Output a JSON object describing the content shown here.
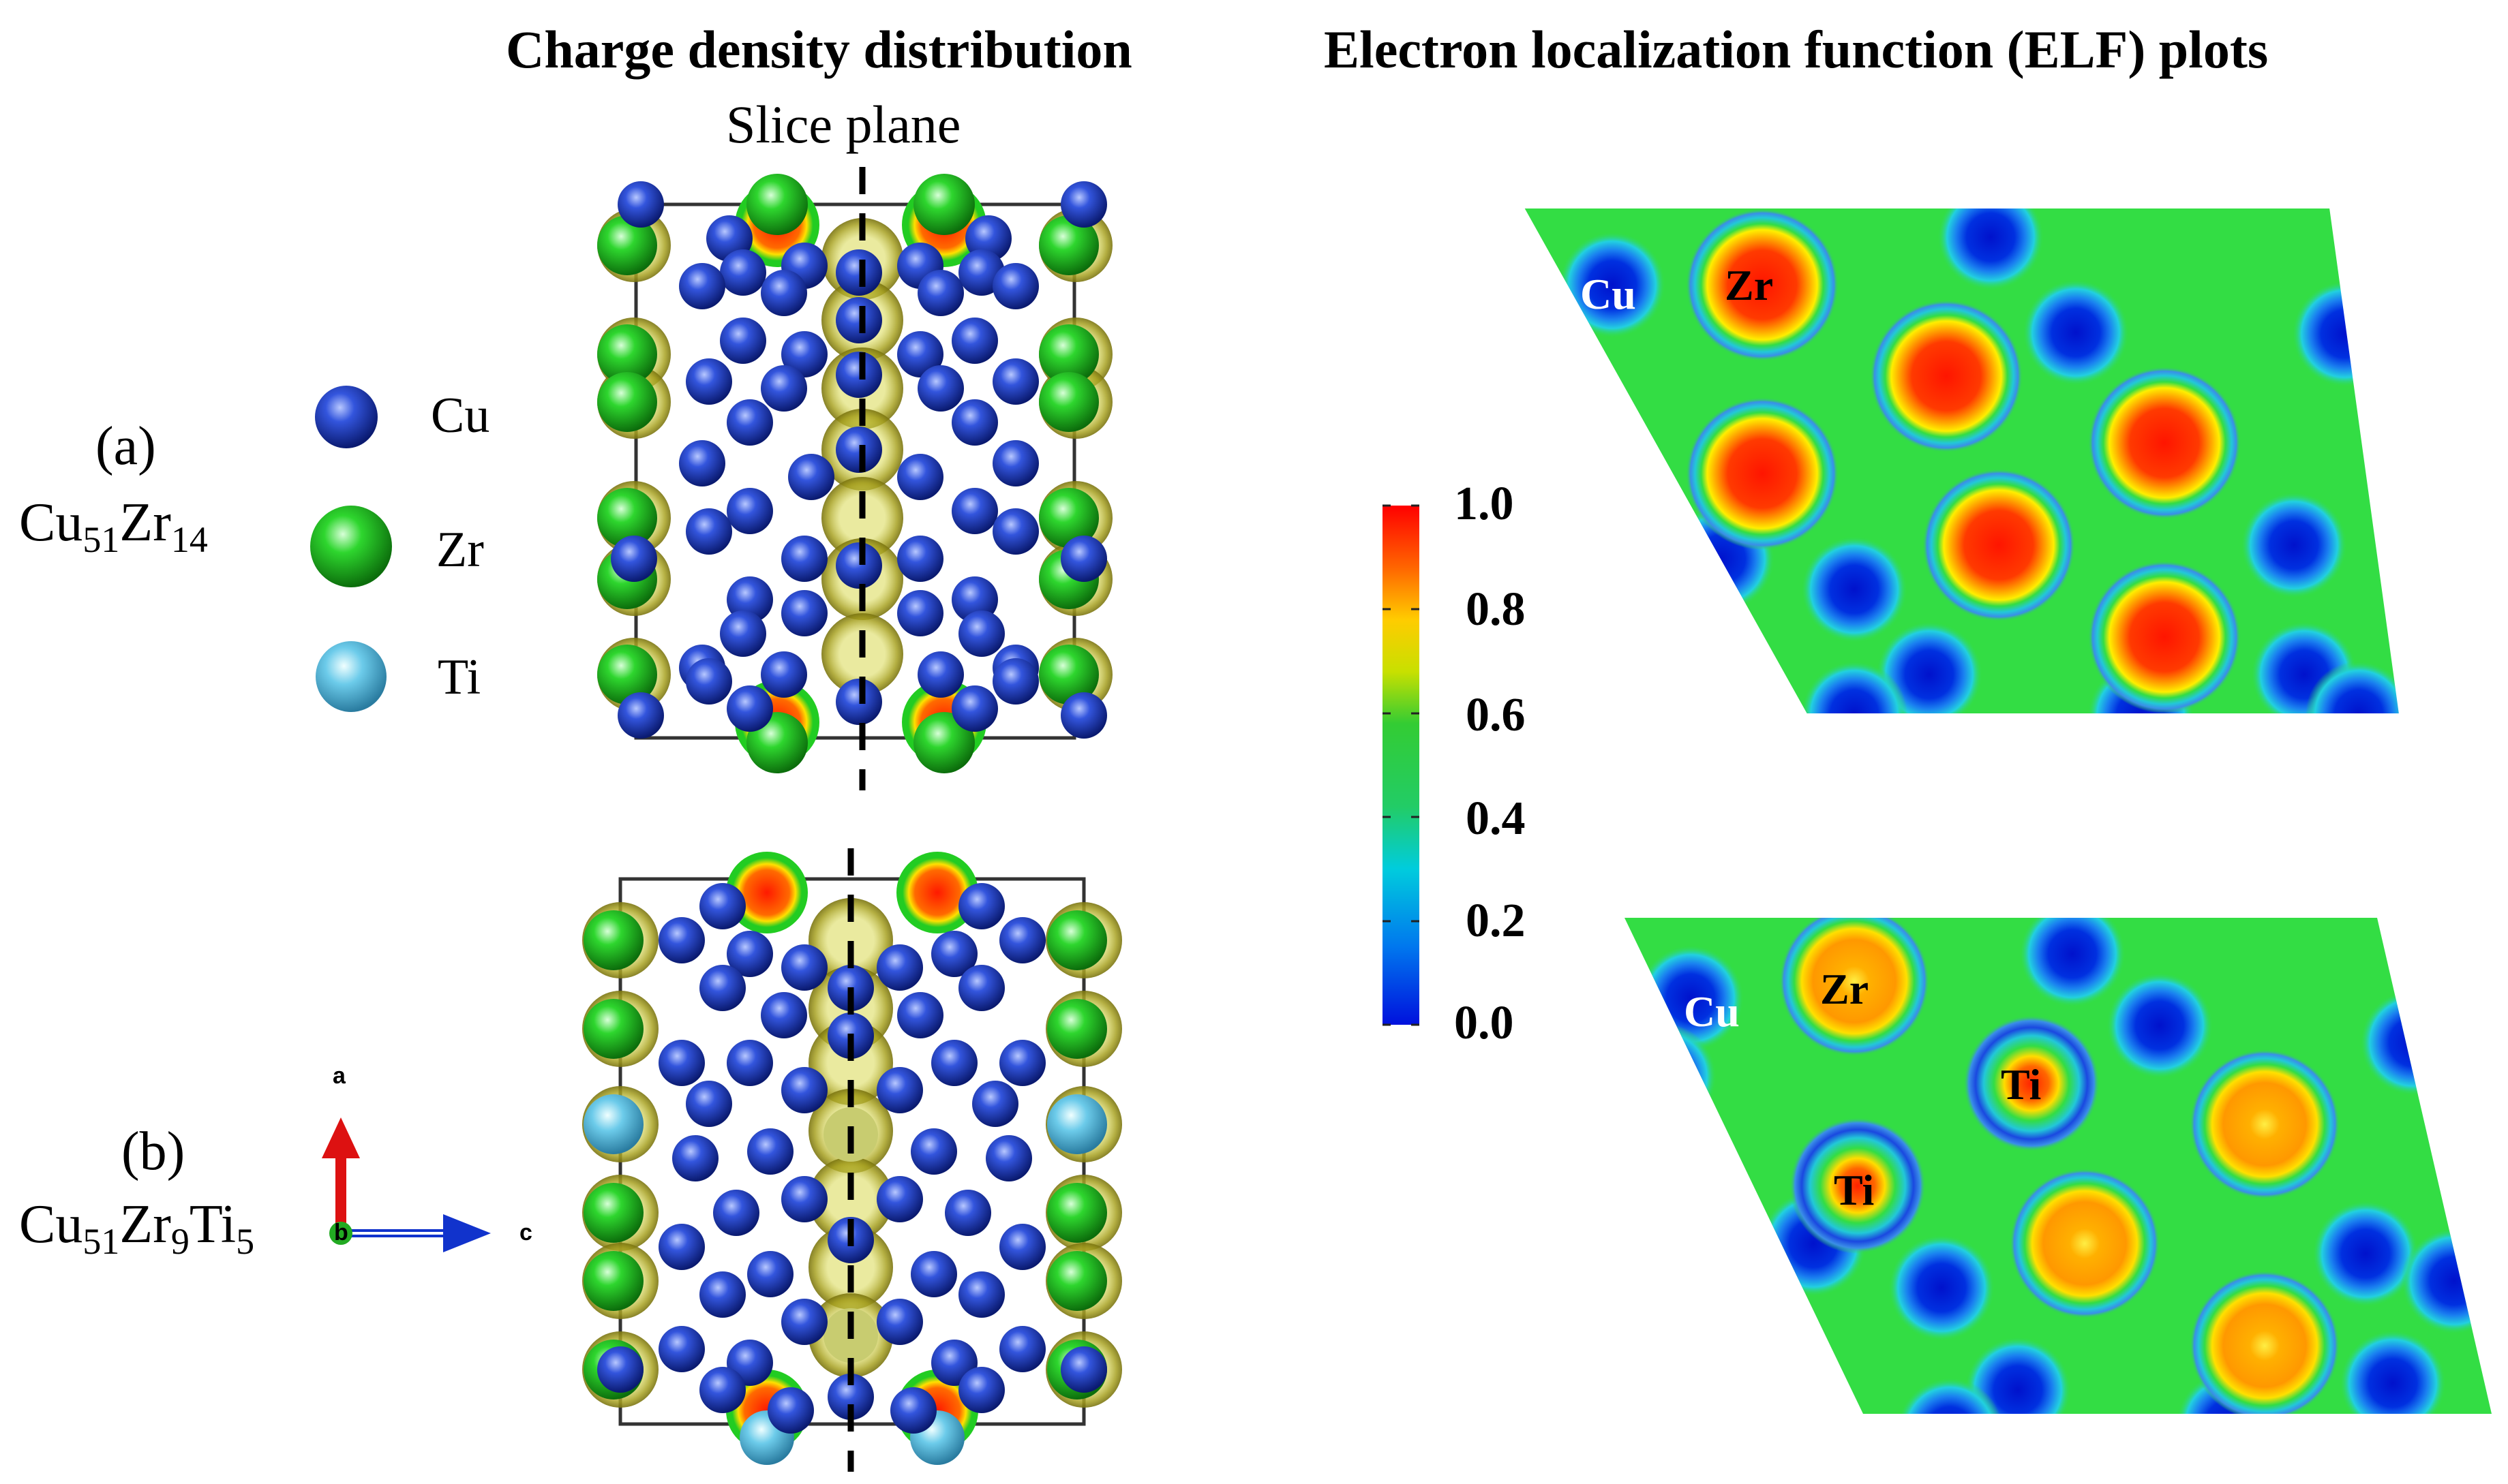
{
  "titles": {
    "left": "Charge density distribution",
    "right": "Electron localization function (ELF) plots",
    "slice_plane": "Slice plane"
  },
  "panels": {
    "a": {
      "tag": "(a)",
      "formula_base": "Cu",
      "sub1": "51",
      "el2": "Zr",
      "sub2": "14"
    },
    "b": {
      "tag": "(b)",
      "formula_base": "Cu",
      "sub1": "51",
      "el2": "Zr",
      "sub2": "9",
      "el3": "Ti",
      "sub3": "5"
    }
  },
  "legend": [
    {
      "symbol": "Cu",
      "color": "#1f3fc4"
    },
    {
      "symbol": "Zr",
      "color": "#1fc41f"
    },
    {
      "symbol": "Ti",
      "color": "#5fc3e6"
    }
  ],
  "axes": {
    "a": "a",
    "b": "b",
    "c": "c"
  },
  "colorbar": {
    "ticks": [
      "1.0",
      "0.8",
      "0.6",
      "0.4",
      "0.2",
      "0.0"
    ],
    "colors": [
      "#ff0000",
      "#ff9900",
      "#ffee00",
      "#22cc22",
      "#00ccdd",
      "#0022dd"
    ]
  },
  "elf_labels": {
    "top": {
      "cu": "Cu",
      "zr": "Zr"
    },
    "bottom": {
      "cu": "Cu",
      "zr": "Zr",
      "ti1": "Ti",
      "ti2": "Ti"
    }
  },
  "colors": {
    "cu_atom": "#1f3fc4",
    "zr_atom": "#1fc41f",
    "ti_atom": "#5fc3e6",
    "charge_shell": "#b8b82a",
    "elf_background": "#33dd44",
    "elf_max": "#ff2200",
    "elf_min": "#0010cc"
  }
}
